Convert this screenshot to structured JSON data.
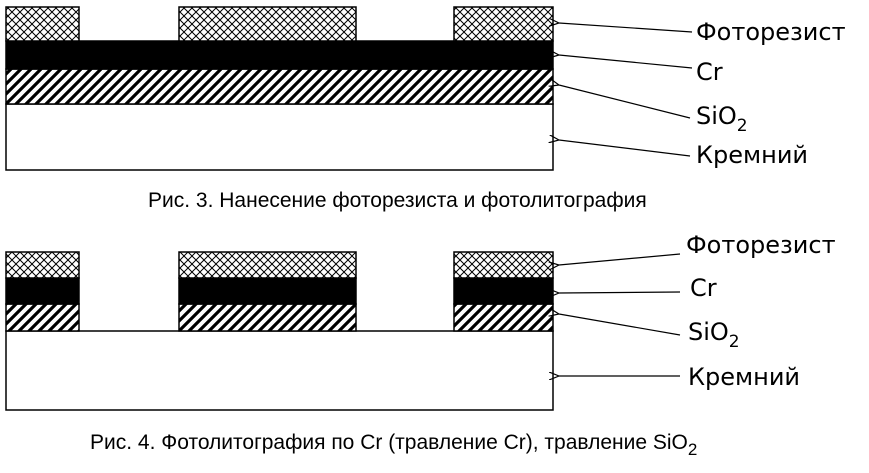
{
  "figure1": {
    "labels": {
      "photoresist": "Фоторезист",
      "cr": "Cr",
      "sio2_main": "SiO",
      "sio2_sub": "2",
      "silicon": "Кремний"
    },
    "caption": "Рис. 3. Нанесение фоторезиста и фотолитография"
  },
  "figure2": {
    "labels": {
      "photoresist": "Фоторезист",
      "cr": "Cr",
      "sio2_main": "SiO",
      "sio2_sub": "2",
      "silicon": "Кремний"
    },
    "caption_main": "Рис. 4. Фотолитография по Cr (травление Cr), травление SiO",
    "caption_sub": "2"
  },
  "colors": {
    "line": "#000000",
    "chrome": "#000000",
    "substrate": "#ffffff"
  }
}
